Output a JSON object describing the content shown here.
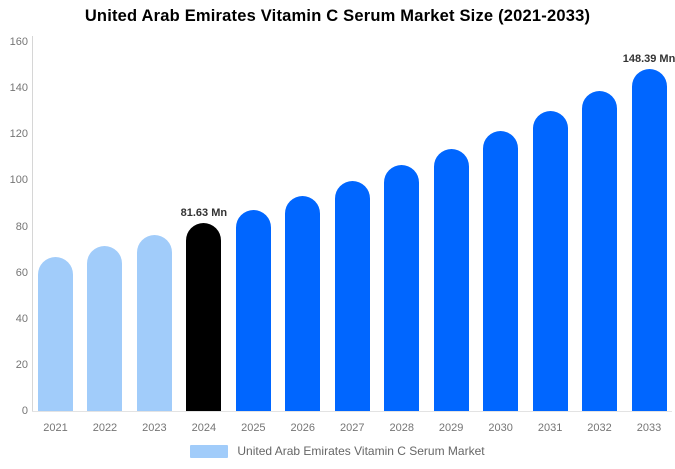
{
  "title": "United Arab Emirates Vitamin C Serum Market Size (2021-2033)",
  "legend": {
    "label": "United Arab Emirates Vitamin C Serum Market",
    "swatch_color": "#a1ccfa"
  },
  "colors": {
    "historical_bar": "#a1ccfa",
    "base_year_bar": "#000000",
    "forecast_bar": "#0066ff",
    "axis_line": "#d6d6d6",
    "tick_text": "#757575",
    "data_label_text": "#333333",
    "legend_text": "#666666",
    "title_text": "#000000"
  },
  "chart_data": {
    "type": "bar",
    "title": "United Arab Emirates Vitamin C Serum Market Size (2021-2033)",
    "xlabel": "",
    "ylabel": "",
    "unit": "Mn",
    "categories": [
      "2021",
      "2022",
      "2023",
      "2024",
      "2025",
      "2026",
      "2027",
      "2028",
      "2029",
      "2030",
      "2031",
      "2032",
      "2033"
    ],
    "values": [
      66.9,
      71.5,
      76.4,
      81.63,
      87.2,
      93.2,
      99.6,
      106.5,
      113.8,
      121.6,
      130.0,
      138.9,
      148.39
    ],
    "point_labels": [
      "",
      "",
      "",
      "81.63 Mn",
      "",
      "",
      "",
      "",
      "",
      "",
      "",
      "",
      "148.39 Mn"
    ],
    "bar_colors": [
      "#a1ccfa",
      "#a1ccfa",
      "#a1ccfa",
      "#000000",
      "#0066ff",
      "#0066ff",
      "#0066ff",
      "#0066ff",
      "#0066ff",
      "#0066ff",
      "#0066ff",
      "#0066ff",
      "#0066ff"
    ],
    "ylim": [
      0,
      160
    ],
    "y_ticks": [
      0,
      20,
      40,
      60,
      80,
      100,
      120,
      140,
      160
    ],
    "grid": false,
    "legend_position": "bottom",
    "legend_entries": [
      "United Arab Emirates Vitamin C Serum Market"
    ]
  }
}
